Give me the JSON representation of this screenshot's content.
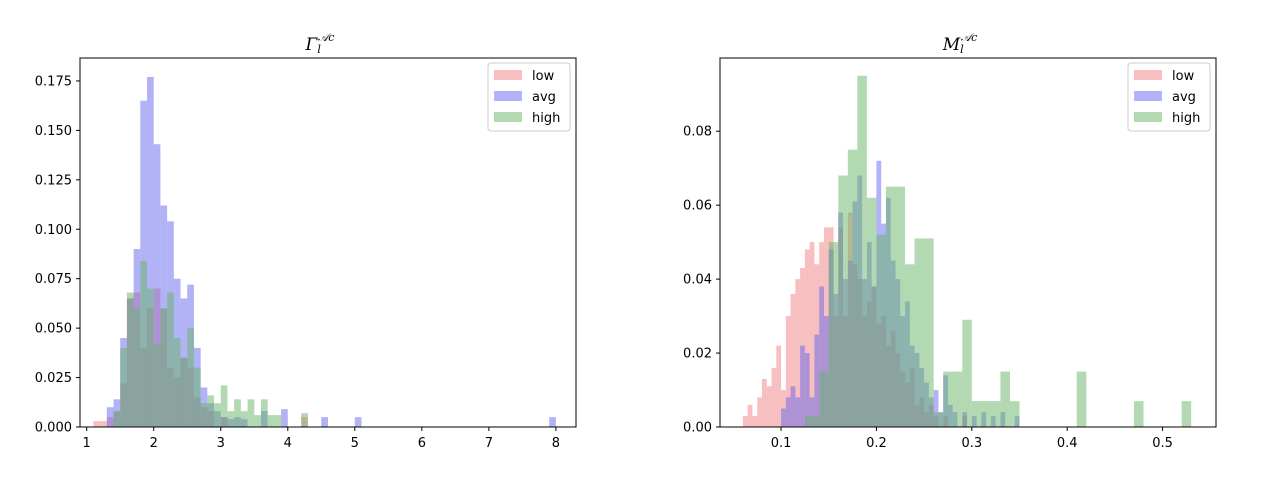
{
  "chart_data": [
    {
      "type": "histogram",
      "title": {
        "base": "Γ",
        "sub": "l",
        "sup": "𝒜c"
      },
      "xlabel": "",
      "ylabel": "",
      "xlim": [
        0.9,
        8.3
      ],
      "ylim": [
        0,
        0.1866
      ],
      "xticks": [
        1,
        2,
        3,
        4,
        5,
        6,
        7,
        8
      ],
      "xtick_labels": [
        "1",
        "2",
        "3",
        "4",
        "5",
        "6",
        "7",
        "8"
      ],
      "yticks": [
        0.0,
        0.025,
        0.05,
        0.075,
        0.1,
        0.125,
        0.15,
        0.175
      ],
      "ytick_labels": [
        "0.000",
        "0.025",
        "0.050",
        "0.075",
        "0.100",
        "0.125",
        "0.150",
        "0.175"
      ],
      "legend_position": "top-right",
      "series": [
        {
          "name": "low",
          "color": "#f08080",
          "bins": [
            [
              1.1,
              1.2,
              0.003
            ],
            [
              1.2,
              1.3,
              0.003
            ],
            [
              1.3,
              1.4,
              0.005
            ],
            [
              1.4,
              1.5,
              0.008
            ],
            [
              1.5,
              1.6,
              0.022
            ],
            [
              1.6,
              1.7,
              0.065
            ],
            [
              1.7,
              1.8,
              0.068
            ],
            [
              1.8,
              1.9,
              0.04
            ],
            [
              1.9,
              2.0,
              0.06
            ],
            [
              2.0,
              2.1,
              0.07
            ],
            [
              2.1,
              2.2,
              0.06
            ],
            [
              2.2,
              2.3,
              0.03
            ],
            [
              2.3,
              2.4,
              0.025
            ],
            [
              2.4,
              2.5,
              0.035
            ],
            [
              2.5,
              2.6,
              0.03
            ],
            [
              2.6,
              2.7,
              0.015
            ],
            [
              2.7,
              2.8,
              0.01
            ],
            [
              2.8,
              2.9,
              0.008
            ],
            [
              3.0,
              3.1,
              0.005
            ],
            [
              4.2,
              4.3,
              0.005
            ]
          ]
        },
        {
          "name": "avg",
          "color": "#6666ee",
          "bins": [
            [
              1.3,
              1.4,
              0.01
            ],
            [
              1.4,
              1.5,
              0.014
            ],
            [
              1.5,
              1.6,
              0.045
            ],
            [
              1.6,
              1.7,
              0.065
            ],
            [
              1.7,
              1.8,
              0.09
            ],
            [
              1.8,
              1.9,
              0.165
            ],
            [
              1.9,
              2.0,
              0.177
            ],
            [
              2.0,
              2.1,
              0.143
            ],
            [
              2.1,
              2.2,
              0.112
            ],
            [
              2.2,
              2.3,
              0.104
            ],
            [
              2.3,
              2.4,
              0.075
            ],
            [
              2.4,
              2.5,
              0.065
            ],
            [
              2.5,
              2.6,
              0.072
            ],
            [
              2.6,
              2.7,
              0.04
            ],
            [
              2.7,
              2.8,
              0.02
            ],
            [
              2.8,
              2.9,
              0.012
            ],
            [
              2.9,
              3.0,
              0.008
            ],
            [
              3.0,
              3.1,
              0.005
            ],
            [
              3.1,
              3.2,
              0.004
            ],
            [
              3.2,
              3.3,
              0.005
            ],
            [
              3.3,
              3.4,
              0.004
            ],
            [
              3.6,
              3.7,
              0.008
            ],
            [
              3.9,
              4.0,
              0.009
            ],
            [
              4.5,
              4.6,
              0.005
            ],
            [
              5.0,
              5.1,
              0.005
            ],
            [
              7.9,
              8.0,
              0.005
            ]
          ]
        },
        {
          "name": "high",
          "color": "#66b366",
          "bins": [
            [
              1.4,
              1.5,
              0.008
            ],
            [
              1.5,
              1.6,
              0.04
            ],
            [
              1.6,
              1.7,
              0.068
            ],
            [
              1.7,
              1.8,
              0.06
            ],
            [
              1.8,
              1.9,
              0.084
            ],
            [
              1.9,
              2.0,
              0.07
            ],
            [
              2.0,
              2.1,
              0.042
            ],
            [
              2.1,
              2.2,
              0.06
            ],
            [
              2.2,
              2.3,
              0.068
            ],
            [
              2.3,
              2.4,
              0.045
            ],
            [
              2.4,
              2.5,
              0.035
            ],
            [
              2.5,
              2.6,
              0.05
            ],
            [
              2.6,
              2.7,
              0.03
            ],
            [
              2.7,
              2.8,
              0.012
            ],
            [
              2.8,
              2.9,
              0.016
            ],
            [
              2.9,
              3.0,
              0.012
            ],
            [
              3.0,
              3.1,
              0.021
            ],
            [
              3.1,
              3.2,
              0.008
            ],
            [
              3.2,
              3.3,
              0.014
            ],
            [
              3.3,
              3.4,
              0.008
            ],
            [
              3.4,
              3.5,
              0.014
            ],
            [
              3.5,
              3.6,
              0.006
            ],
            [
              3.6,
              3.7,
              0.014
            ],
            [
              3.7,
              3.8,
              0.006
            ],
            [
              3.8,
              3.9,
              0.006
            ],
            [
              4.2,
              4.3,
              0.007
            ]
          ]
        }
      ]
    },
    {
      "type": "histogram",
      "title": {
        "base": "M",
        "sub": "l",
        "sup": "𝒜c"
      },
      "xlabel": "",
      "ylabel": "",
      "xlim": [
        0.036,
        0.556
      ],
      "ylim": [
        0,
        0.0998
      ],
      "xticks": [
        0.1,
        0.2,
        0.3,
        0.4,
        0.5
      ],
      "xtick_labels": [
        "0.1",
        "0.2",
        "0.3",
        "0.4",
        "0.5"
      ],
      "yticks": [
        0.0,
        0.02,
        0.04,
        0.06,
        0.08
      ],
      "ytick_labels": [
        "0.00",
        "0.02",
        "0.04",
        "0.06",
        "0.08"
      ],
      "legend_position": "top-right",
      "series": [
        {
          "name": "low",
          "color": "#f08080",
          "bins": [
            [
              0.06,
              0.065,
              0.003
            ],
            [
              0.065,
              0.07,
              0.006
            ],
            [
              0.07,
              0.075,
              0.003
            ],
            [
              0.075,
              0.08,
              0.008
            ],
            [
              0.08,
              0.085,
              0.013
            ],
            [
              0.085,
              0.09,
              0.011
            ],
            [
              0.09,
              0.095,
              0.016
            ],
            [
              0.095,
              0.1,
              0.022
            ],
            [
              0.1,
              0.105,
              0.01
            ],
            [
              0.105,
              0.11,
              0.03
            ],
            [
              0.11,
              0.115,
              0.036
            ],
            [
              0.115,
              0.12,
              0.04
            ],
            [
              0.12,
              0.125,
              0.043
            ],
            [
              0.125,
              0.13,
              0.048
            ],
            [
              0.13,
              0.135,
              0.05
            ],
            [
              0.135,
              0.14,
              0.044
            ],
            [
              0.14,
              0.145,
              0.05
            ],
            [
              0.145,
              0.15,
              0.054
            ],
            [
              0.15,
              0.155,
              0.054
            ],
            [
              0.155,
              0.16,
              0.03
            ],
            [
              0.16,
              0.165,
              0.054
            ],
            [
              0.165,
              0.17,
              0.03
            ],
            [
              0.17,
              0.175,
              0.058
            ],
            [
              0.175,
              0.18,
              0.044
            ],
            [
              0.18,
              0.185,
              0.04
            ],
            [
              0.185,
              0.19,
              0.03
            ],
            [
              0.19,
              0.195,
              0.034
            ],
            [
              0.195,
              0.2,
              0.038
            ],
            [
              0.2,
              0.205,
              0.028
            ],
            [
              0.205,
              0.21,
              0.03
            ],
            [
              0.21,
              0.215,
              0.022
            ],
            [
              0.215,
              0.22,
              0.026
            ],
            [
              0.22,
              0.225,
              0.02
            ],
            [
              0.225,
              0.23,
              0.015
            ],
            [
              0.23,
              0.235,
              0.012
            ],
            [
              0.235,
              0.24,
              0.016
            ],
            [
              0.24,
              0.245,
              0.006
            ],
            [
              0.245,
              0.25,
              0.008
            ],
            [
              0.25,
              0.255,
              0.004
            ],
            [
              0.255,
              0.26,
              0.006
            ],
            [
              0.26,
              0.265,
              0.003
            ],
            [
              0.27,
              0.275,
              0.003
            ],
            [
              0.29,
              0.295,
              0.003
            ]
          ]
        },
        {
          "name": "avg",
          "color": "#6666ee",
          "bins": [
            [
              0.1,
              0.105,
              0.005
            ],
            [
              0.105,
              0.11,
              0.008
            ],
            [
              0.11,
              0.115,
              0.011
            ],
            [
              0.115,
              0.12,
              0.008
            ],
            [
              0.12,
              0.125,
              0.022
            ],
            [
              0.125,
              0.13,
              0.02
            ],
            [
              0.13,
              0.135,
              0.008
            ],
            [
              0.135,
              0.14,
              0.025
            ],
            [
              0.14,
              0.145,
              0.038
            ],
            [
              0.145,
              0.15,
              0.03
            ],
            [
              0.15,
              0.155,
              0.048
            ],
            [
              0.155,
              0.16,
              0.036
            ],
            [
              0.16,
              0.165,
              0.058
            ],
            [
              0.165,
              0.17,
              0.04
            ],
            [
              0.17,
              0.175,
              0.045
            ],
            [
              0.175,
              0.18,
              0.061
            ],
            [
              0.18,
              0.185,
              0.068
            ],
            [
              0.185,
              0.19,
              0.04
            ],
            [
              0.19,
              0.195,
              0.05
            ],
            [
              0.195,
              0.2,
              0.038
            ],
            [
              0.2,
              0.205,
              0.072
            ],
            [
              0.205,
              0.21,
              0.055
            ],
            [
              0.21,
              0.215,
              0.062
            ],
            [
              0.215,
              0.22,
              0.045
            ],
            [
              0.22,
              0.225,
              0.04
            ],
            [
              0.225,
              0.23,
              0.03
            ],
            [
              0.23,
              0.235,
              0.034
            ],
            [
              0.235,
              0.24,
              0.022
            ],
            [
              0.24,
              0.245,
              0.02
            ],
            [
              0.245,
              0.25,
              0.016
            ],
            [
              0.25,
              0.255,
              0.012
            ],
            [
              0.255,
              0.26,
              0.008
            ],
            [
              0.26,
              0.265,
              0.01
            ],
            [
              0.265,
              0.27,
              0.004
            ],
            [
              0.27,
              0.275,
              0.014
            ],
            [
              0.275,
              0.28,
              0.006
            ],
            [
              0.28,
              0.285,
              0.004
            ],
            [
              0.29,
              0.295,
              0.004
            ],
            [
              0.3,
              0.305,
              0.003
            ],
            [
              0.31,
              0.315,
              0.004
            ],
            [
              0.32,
              0.325,
              0.003
            ],
            [
              0.33,
              0.335,
              0.004
            ],
            [
              0.345,
              0.35,
              0.003
            ]
          ]
        },
        {
          "name": "high",
          "color": "#66b366",
          "bins": [
            [
              0.125,
              0.13,
              0.003
            ],
            [
              0.13,
              0.14,
              0.003
            ],
            [
              0.14,
              0.15,
              0.015
            ],
            [
              0.15,
              0.16,
              0.05
            ],
            [
              0.16,
              0.17,
              0.068
            ],
            [
              0.17,
              0.18,
              0.075
            ],
            [
              0.18,
              0.19,
              0.095
            ],
            [
              0.19,
              0.2,
              0.062
            ],
            [
              0.2,
              0.21,
              0.052
            ],
            [
              0.21,
              0.22,
              0.065
            ],
            [
              0.22,
              0.23,
              0.065
            ],
            [
              0.23,
              0.24,
              0.044
            ],
            [
              0.24,
              0.25,
              0.051
            ],
            [
              0.25,
              0.26,
              0.051
            ],
            [
              0.26,
              0.27,
              0.004
            ],
            [
              0.27,
              0.28,
              0.015
            ],
            [
              0.28,
              0.29,
              0.015
            ],
            [
              0.29,
              0.3,
              0.029
            ],
            [
              0.3,
              0.31,
              0.007
            ],
            [
              0.31,
              0.32,
              0.007
            ],
            [
              0.32,
              0.33,
              0.007
            ],
            [
              0.33,
              0.34,
              0.015
            ],
            [
              0.34,
              0.35,
              0.007
            ],
            [
              0.41,
              0.42,
              0.015
            ],
            [
              0.47,
              0.48,
              0.007
            ],
            [
              0.52,
              0.53,
              0.007
            ]
          ]
        }
      ]
    }
  ]
}
